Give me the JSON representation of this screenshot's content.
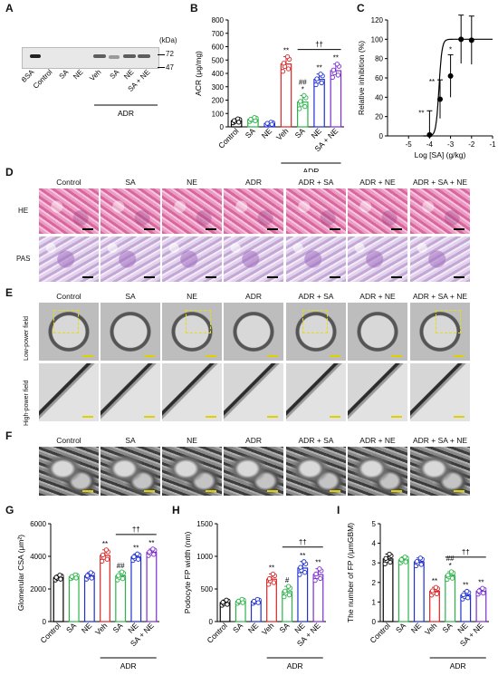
{
  "panel_letters": [
    "A",
    "B",
    "C",
    "D",
    "E",
    "F",
    "G",
    "H",
    "I"
  ],
  "conditions": [
    "Control",
    "SA",
    "NE",
    "ADR",
    "ADR + SA",
    "ADR + NE",
    "ADR + SA + NE"
  ],
  "row_labels": {
    "he": "HE",
    "pas": "PAS",
    "low": "Low-power field",
    "high": "High-power field"
  },
  "gel": {
    "kda_label": "(kDa)",
    "markers": [
      "72",
      "47"
    ],
    "lanes": [
      "BSA",
      "Control",
      "SA",
      "NE",
      "Veh",
      "SA",
      "NE",
      "SA + NE"
    ],
    "group_label": "ADR"
  },
  "colors": {
    "control": "#000000",
    "sa": "#2bb34a",
    "ne": "#1f2fd1",
    "veh": "#d92626",
    "adr_sa": "#2bb34a",
    "adr_ne": "#1f2fd1",
    "adr_sa_ne": "#7a2ed1"
  },
  "chart_data": [
    {
      "id": "B",
      "type": "bar",
      "categories": [
        "Control",
        "SA",
        "NE",
        "Veh",
        "SA",
        "NE",
        "SA + NE"
      ],
      "group_label": "ADR",
      "values": [
        45,
        55,
        25,
        470,
        185,
        355,
        420
      ],
      "errors": [
        15,
        15,
        10,
        55,
        50,
        40,
        50
      ],
      "ylabel": "ACR (μg/mg)",
      "ylim": [
        0,
        800
      ],
      "yticks": [
        0,
        100,
        200,
        300,
        400,
        500,
        600,
        700,
        800
      ],
      "annotations": [
        "",
        "",
        "",
        "**",
        "##\n*",
        "**",
        "**"
      ],
      "bracket": "††"
    },
    {
      "id": "C",
      "type": "scatter",
      "x": [
        -4,
        -3.5,
        -3,
        -2.5,
        -2
      ],
      "y": [
        1,
        38,
        62,
        100,
        99
      ],
      "errors": [
        25,
        20,
        22,
        25,
        25
      ],
      "ylabel": "Relative inhibition (%)",
      "xlabel": "Log [SA] (g/kg)",
      "xlim": [
        -6,
        -1
      ],
      "xticks": [
        -5,
        -4,
        -3,
        -2,
        -1
      ],
      "ylim": [
        0,
        120
      ],
      "yticks": [
        0,
        20,
        40,
        60,
        80,
        100,
        120
      ],
      "annotations": [
        "**",
        "**",
        "*",
        "##\n*",
        "##\n*"
      ]
    },
    {
      "id": "G",
      "type": "bar",
      "categories": [
        "Control",
        "SA",
        "NE",
        "Veh",
        "SA",
        "NE",
        "SA + NE"
      ],
      "group_label": "ADR",
      "values": [
        2700,
        2750,
        2800,
        4050,
        2800,
        3950,
        4250
      ],
      "errors": [
        150,
        120,
        200,
        350,
        250,
        200,
        200
      ],
      "ylabel": "Glomerular CSA (μm²)",
      "ylim": [
        0,
        6000
      ],
      "yticks": [
        0,
        2000,
        4000,
        6000
      ],
      "annotations": [
        "",
        "",
        "",
        "**",
        "##",
        "**",
        "**"
      ],
      "bracket": "††"
    },
    {
      "id": "H",
      "type": "bar",
      "categories": [
        "Control",
        "SA",
        "NE",
        "Veh",
        "SA",
        "NE",
        "SA + NE"
      ],
      "group_label": "ADR",
      "values": [
        290,
        310,
        310,
        650,
        460,
        820,
        720
      ],
      "errors": [
        40,
        30,
        30,
        80,
        80,
        100,
        90
      ],
      "ylabel": "Podocyte FP width (nm)",
      "ylim": [
        0,
        1500
      ],
      "yticks": [
        0,
        500,
        1000,
        1500
      ],
      "annotations": [
        "",
        "",
        "",
        "**",
        "#",
        "**",
        "**"
      ],
      "bracket": "††"
    },
    {
      "id": "I",
      "type": "bar",
      "categories": [
        "Control",
        "SA",
        "NE",
        "Veh",
        "SA",
        "NE",
        "SA + NE"
      ],
      "group_label": "ADR",
      "values": [
        3.2,
        3.15,
        3.05,
        1.55,
        2.35,
        1.35,
        1.55
      ],
      "errors": [
        0.25,
        0.15,
        0.2,
        0.2,
        0.2,
        0.2,
        0.15
      ],
      "ylabel": "The number of FP (/μmGBM)",
      "ylim": [
        0,
        5
      ],
      "yticks": [
        0,
        1,
        2,
        3,
        4,
        5
      ],
      "annotations": [
        "",
        "",
        "",
        "**",
        "##\n*",
        "**",
        "**"
      ],
      "bracket": "††"
    }
  ]
}
